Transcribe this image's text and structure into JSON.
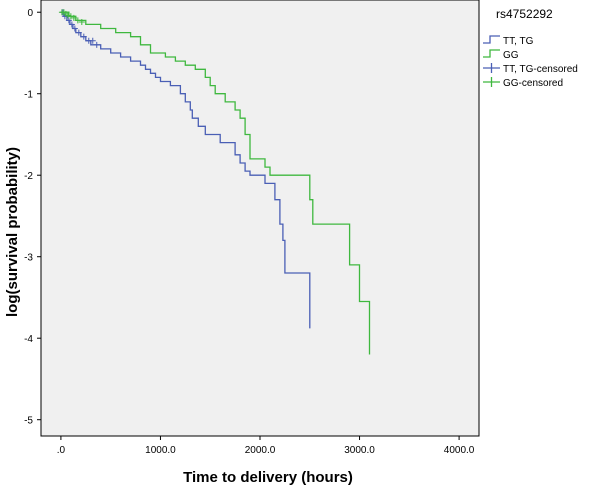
{
  "chart_data": {
    "type": "line",
    "title": "",
    "xlabel": "Time  to delivery  (hours)",
    "ylabel": "log(survival  probability)",
    "xlim": [
      -200,
      4200
    ],
    "ylim": [
      -5.2,
      0.15
    ],
    "x_ticks": [
      0,
      1000,
      2000,
      3000,
      4000
    ],
    "x_tick_labels": [
      ".0",
      "1000.0",
      "2000.0",
      "3000.0",
      "4000.0"
    ],
    "y_ticks": [
      0,
      -1,
      -2,
      -3,
      -4,
      -5
    ],
    "y_tick_labels": [
      "0",
      "-1",
      "-2",
      "-3",
      "-4",
      "-5"
    ],
    "grid": false,
    "background": "#f0f0f0",
    "legend": {
      "title": "rs4752292",
      "position": "top-right outside",
      "entries": [
        {
          "label": "TT, TG",
          "kind": "line",
          "color": "#4a5fb5"
        },
        {
          "label": "GG",
          "kind": "line",
          "color": "#3fb83f"
        },
        {
          "label": "TT, TG-censored",
          "kind": "censor",
          "color": "#4a5fb5"
        },
        {
          "label": "GG-censored",
          "kind": "censor",
          "color": "#3fb83f"
        }
      ]
    },
    "series": [
      {
        "name": "TT, TG",
        "color": "#4a5fb5",
        "step_x": [
          0,
          30,
          60,
          90,
          120,
          150,
          200,
          250,
          300,
          400,
          500,
          600,
          700,
          800,
          850,
          900,
          950,
          1000,
          1100,
          1200,
          1250,
          1300,
          1320,
          1380,
          1450,
          1600,
          1750,
          1800,
          1850,
          1900,
          2050,
          2150,
          2200,
          2230,
          2250,
          2500,
          2500
        ],
        "step_y": [
          0,
          -0.05,
          -0.1,
          -0.15,
          -0.2,
          -0.25,
          -0.3,
          -0.35,
          -0.4,
          -0.45,
          -0.5,
          -0.55,
          -0.6,
          -0.65,
          -0.7,
          -0.75,
          -0.8,
          -0.85,
          -0.9,
          -1.0,
          -1.1,
          -1.2,
          -1.3,
          -1.4,
          -1.5,
          -1.6,
          -1.75,
          -1.85,
          -1.95,
          -2.0,
          -2.1,
          -2.3,
          -2.6,
          -2.8,
          -3.2,
          -3.2,
          -3.88
        ],
        "censored_x": [
          20,
          40,
          80,
          110,
          140,
          180,
          230,
          280,
          320,
          360
        ],
        "censored_y": [
          0,
          -0.05,
          -0.1,
          -0.15,
          -0.2,
          -0.25,
          -0.3,
          -0.35,
          -0.35,
          -0.4
        ]
      },
      {
        "name": "GG",
        "color": "#3fb83f",
        "step_x": [
          0,
          80,
          150,
          250,
          400,
          550,
          700,
          800,
          900,
          1050,
          1150,
          1250,
          1350,
          1450,
          1500,
          1550,
          1650,
          1750,
          1800,
          1850,
          1900,
          2050,
          2100,
          2300,
          2500,
          2530,
          2850,
          2900,
          3000,
          3100,
          3100
        ],
        "step_y": [
          0,
          -0.05,
          -0.1,
          -0.15,
          -0.2,
          -0.25,
          -0.3,
          -0.4,
          -0.5,
          -0.55,
          -0.6,
          -0.65,
          -0.7,
          -0.8,
          -0.9,
          -1.0,
          -1.1,
          -1.2,
          -1.3,
          -1.5,
          -1.8,
          -1.9,
          -2.0,
          -2.0,
          -2.3,
          -2.6,
          -2.6,
          -3.1,
          -3.55,
          -3.55,
          -4.2
        ],
        "censored_x": [
          10,
          30,
          50,
          70,
          100,
          130,
          170,
          210
        ],
        "censored_y": [
          0,
          0,
          -0.02,
          -0.04,
          -0.05,
          -0.07,
          -0.1,
          -0.12
        ]
      }
    ]
  }
}
